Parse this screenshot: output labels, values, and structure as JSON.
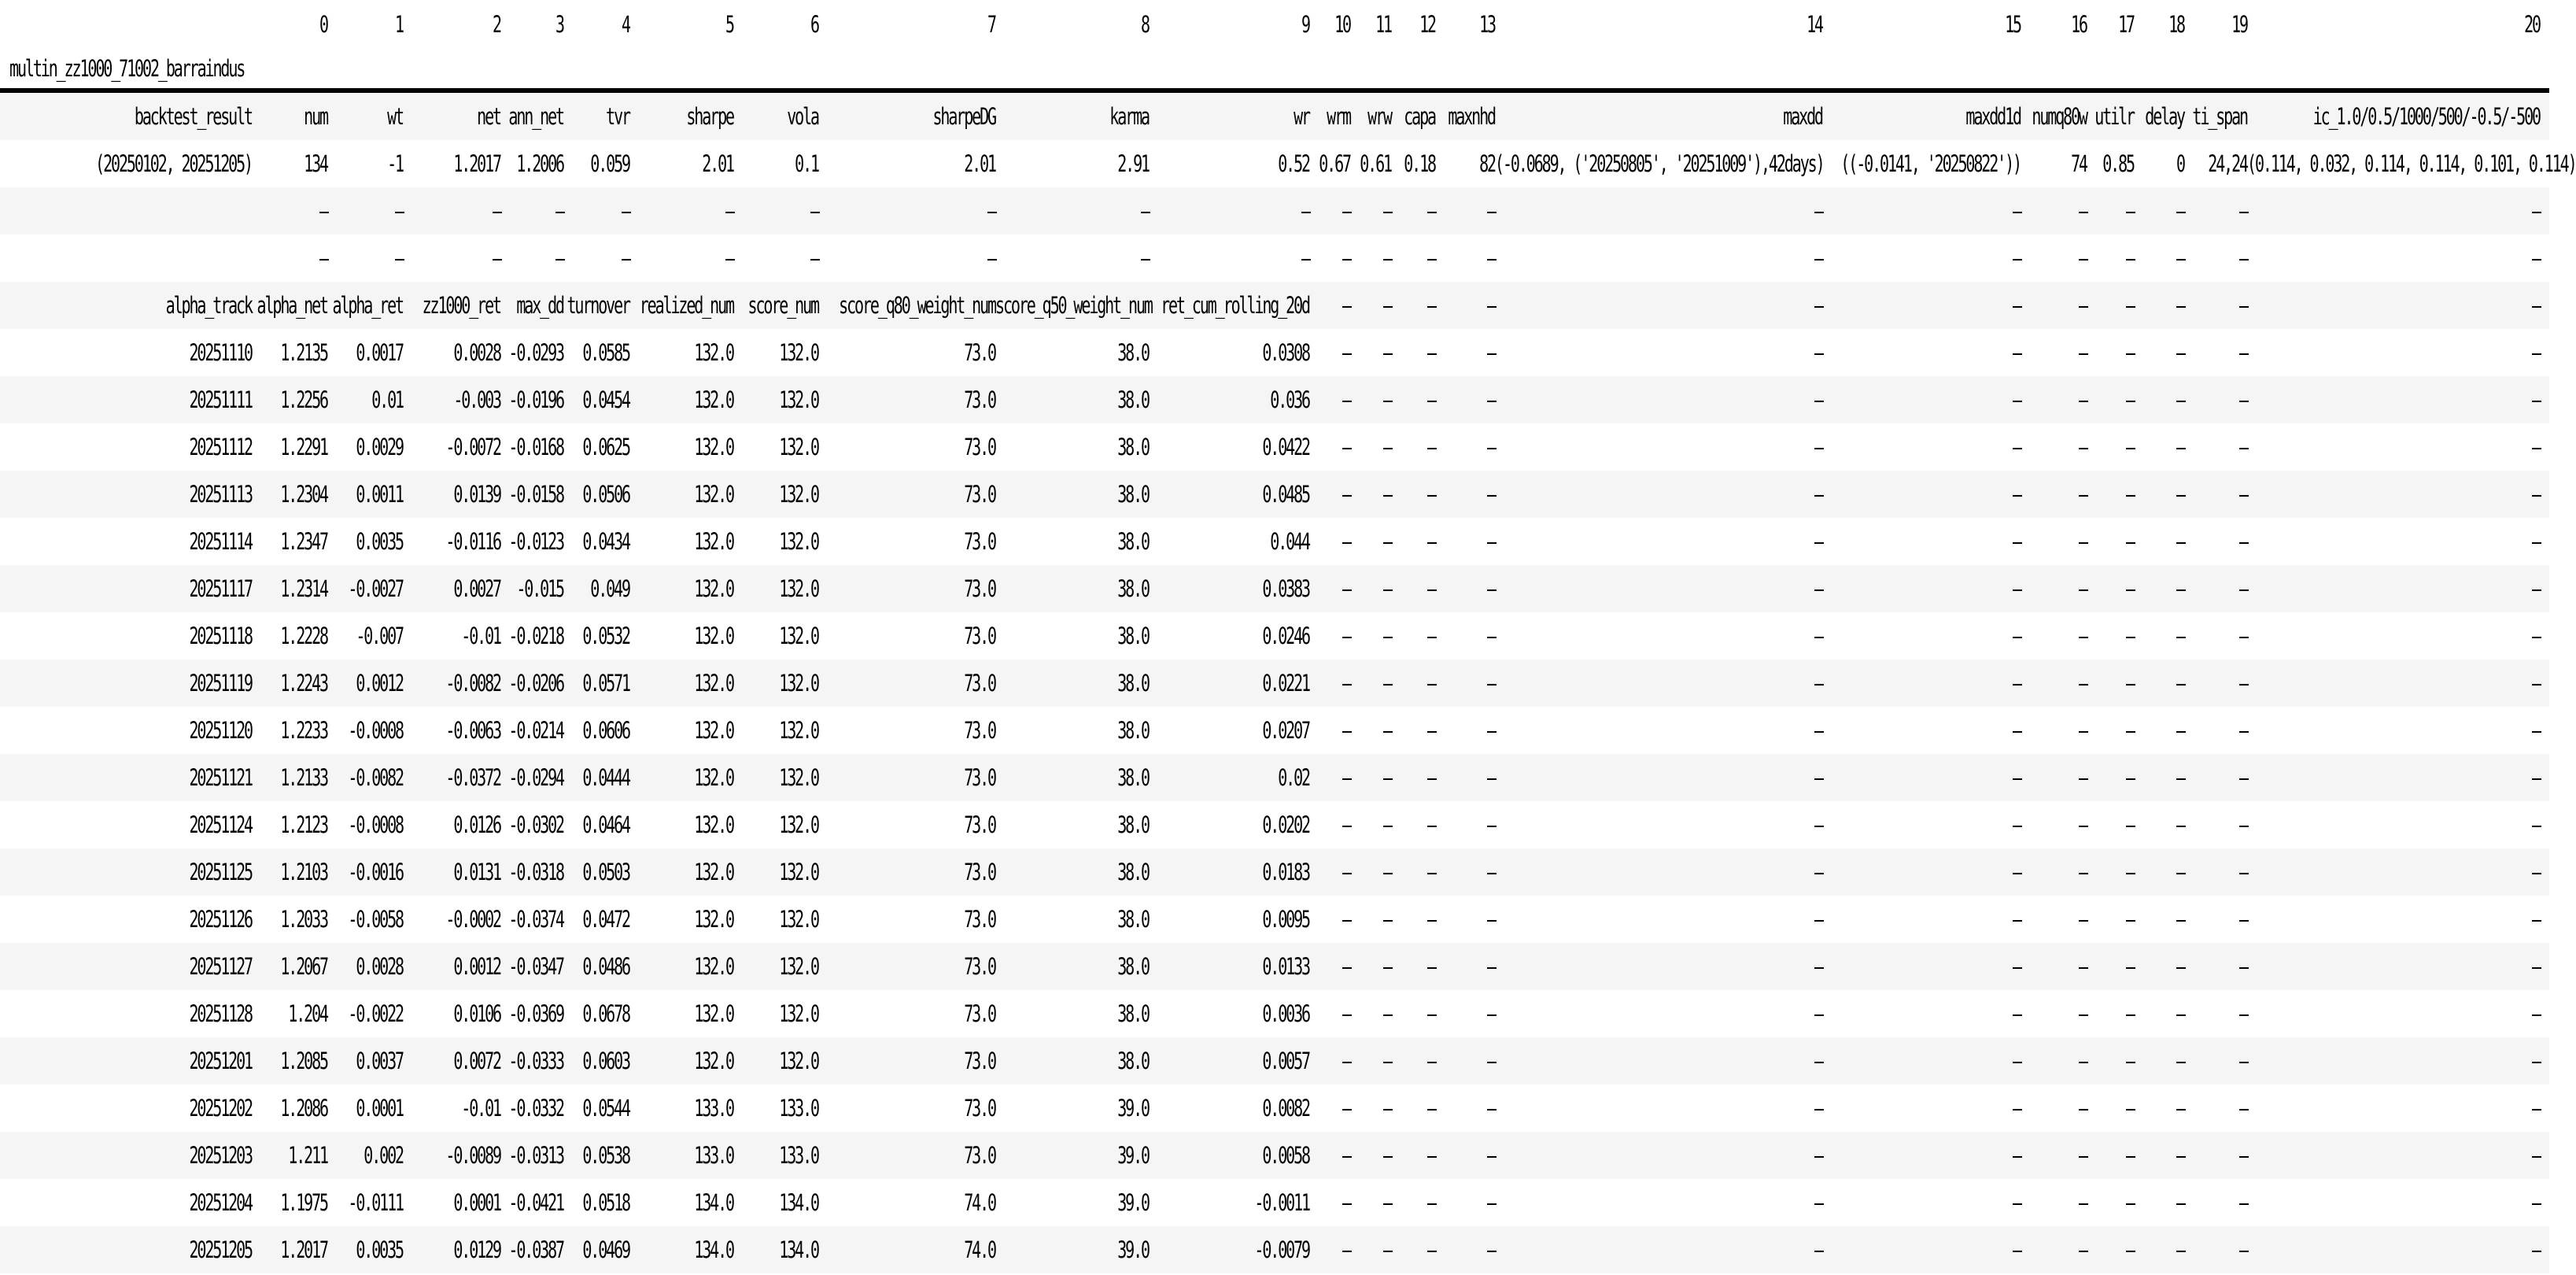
{
  "table": {
    "title": "multin_zz1000_71002_barraindus",
    "colors": {
      "background": "#ffffff",
      "stripe": "#f5f5f5",
      "rule": "#000000",
      "text": "#000000"
    },
    "column_indices": [
      "0",
      "1",
      "2",
      "3",
      "4",
      "5",
      "6",
      "7",
      "8",
      "9",
      "10",
      "11",
      "12",
      "13",
      "14",
      "15",
      "16",
      "17",
      "18",
      "19",
      "20"
    ],
    "columns": [
      "backtest_result",
      "num",
      "wt",
      "net",
      "ann_net",
      "tvr",
      "sharpe",
      "vola",
      "sharpeDG",
      "karma",
      "wr",
      "wrm",
      "wrw",
      "capa",
      "maxnhd",
      "maxdd",
      "maxdd1d",
      "numq80w",
      "utilr",
      "delay",
      "ti_span",
      "ic_1.0/0.5/1000/500/-0.5/-500"
    ],
    "rows": [
      {
        "index": "(20250102, 20251205)",
        "cells": [
          "134",
          "-1",
          "1.2017",
          "1.2006",
          "0.059",
          "2.01",
          "0.1",
          "2.01",
          "2.91",
          "0.52",
          "0.67",
          "0.61",
          "0.18",
          "82",
          "(-0.0689, ('20250805', '20251009'),42days)",
          "((-0.0141, '20250822'))",
          "74",
          "0.85",
          "0",
          "24,24",
          "(0.114, 0.032, 0.114, 0.114, 0.101, 0.114)"
        ]
      },
      {
        "index": "",
        "cells": [
          "—",
          "—",
          "—",
          "—",
          "—",
          "—",
          "—",
          "—",
          "—",
          "—",
          "—",
          "—",
          "—",
          "—",
          "—",
          "—",
          "—",
          "—",
          "—",
          "—",
          "—"
        ]
      },
      {
        "index": "",
        "cells": [
          "—",
          "—",
          "—",
          "—",
          "—",
          "—",
          "—",
          "—",
          "—",
          "—",
          "—",
          "—",
          "—",
          "—",
          "—",
          "—",
          "—",
          "—",
          "—",
          "—",
          "—"
        ]
      },
      {
        "index": "alpha_track",
        "cells": [
          "alpha_net",
          "alpha_ret",
          "zz1000_ret",
          "max_dd",
          "turnover",
          "realized_num",
          "score_num",
          "score_q80_weight_num",
          "score_q50_weight_num",
          "ret_cum_rolling_20d",
          "—",
          "—",
          "—",
          "—",
          "—",
          "—",
          "—",
          "—",
          "—",
          "—",
          "—"
        ]
      },
      {
        "index": "20251110",
        "cells": [
          "1.2135",
          "0.0017",
          "0.0028",
          "-0.0293",
          "0.0585",
          "132.0",
          "132.0",
          "73.0",
          "38.0",
          "0.0308",
          "—",
          "—",
          "—",
          "—",
          "—",
          "—",
          "—",
          "—",
          "—",
          "—",
          "—"
        ]
      },
      {
        "index": "20251111",
        "cells": [
          "1.2256",
          "0.01",
          "-0.003",
          "-0.0196",
          "0.0454",
          "132.0",
          "132.0",
          "73.0",
          "38.0",
          "0.036",
          "—",
          "—",
          "—",
          "—",
          "—",
          "—",
          "—",
          "—",
          "—",
          "—",
          "—"
        ]
      },
      {
        "index": "20251112",
        "cells": [
          "1.2291",
          "0.0029",
          "-0.0072",
          "-0.0168",
          "0.0625",
          "132.0",
          "132.0",
          "73.0",
          "38.0",
          "0.0422",
          "—",
          "—",
          "—",
          "—",
          "—",
          "—",
          "—",
          "—",
          "—",
          "—",
          "—"
        ]
      },
      {
        "index": "20251113",
        "cells": [
          "1.2304",
          "0.0011",
          "0.0139",
          "-0.0158",
          "0.0506",
          "132.0",
          "132.0",
          "73.0",
          "38.0",
          "0.0485",
          "—",
          "—",
          "—",
          "—",
          "—",
          "—",
          "—",
          "—",
          "—",
          "—",
          "—"
        ]
      },
      {
        "index": "20251114",
        "cells": [
          "1.2347",
          "0.0035",
          "-0.0116",
          "-0.0123",
          "0.0434",
          "132.0",
          "132.0",
          "73.0",
          "38.0",
          "0.044",
          "—",
          "—",
          "—",
          "—",
          "—",
          "—",
          "—",
          "—",
          "—",
          "—",
          "—"
        ]
      },
      {
        "index": "20251117",
        "cells": [
          "1.2314",
          "-0.0027",
          "0.0027",
          "-0.015",
          "0.049",
          "132.0",
          "132.0",
          "73.0",
          "38.0",
          "0.0383",
          "—",
          "—",
          "—",
          "—",
          "—",
          "—",
          "—",
          "—",
          "—",
          "—",
          "—"
        ]
      },
      {
        "index": "20251118",
        "cells": [
          "1.2228",
          "-0.007",
          "-0.01",
          "-0.0218",
          "0.0532",
          "132.0",
          "132.0",
          "73.0",
          "38.0",
          "0.0246",
          "—",
          "—",
          "—",
          "—",
          "—",
          "—",
          "—",
          "—",
          "—",
          "—",
          "—"
        ]
      },
      {
        "index": "20251119",
        "cells": [
          "1.2243",
          "0.0012",
          "-0.0082",
          "-0.0206",
          "0.0571",
          "132.0",
          "132.0",
          "73.0",
          "38.0",
          "0.0221",
          "—",
          "—",
          "—",
          "—",
          "—",
          "—",
          "—",
          "—",
          "—",
          "—",
          "—"
        ]
      },
      {
        "index": "20251120",
        "cells": [
          "1.2233",
          "-0.0008",
          "-0.0063",
          "-0.0214",
          "0.0606",
          "132.0",
          "132.0",
          "73.0",
          "38.0",
          "0.0207",
          "—",
          "—",
          "—",
          "—",
          "—",
          "—",
          "—",
          "—",
          "—",
          "—",
          "—"
        ]
      },
      {
        "index": "20251121",
        "cells": [
          "1.2133",
          "-0.0082",
          "-0.0372",
          "-0.0294",
          "0.0444",
          "132.0",
          "132.0",
          "73.0",
          "38.0",
          "0.02",
          "—",
          "—",
          "—",
          "—",
          "—",
          "—",
          "—",
          "—",
          "—",
          "—",
          "—"
        ]
      },
      {
        "index": "20251124",
        "cells": [
          "1.2123",
          "-0.0008",
          "0.0126",
          "-0.0302",
          "0.0464",
          "132.0",
          "132.0",
          "73.0",
          "38.0",
          "0.0202",
          "—",
          "—",
          "—",
          "—",
          "—",
          "—",
          "—",
          "—",
          "—",
          "—",
          "—"
        ]
      },
      {
        "index": "20251125",
        "cells": [
          "1.2103",
          "-0.0016",
          "0.0131",
          "-0.0318",
          "0.0503",
          "132.0",
          "132.0",
          "73.0",
          "38.0",
          "0.0183",
          "—",
          "—",
          "—",
          "—",
          "—",
          "—",
          "—",
          "—",
          "—",
          "—",
          "—"
        ]
      },
      {
        "index": "20251126",
        "cells": [
          "1.2033",
          "-0.0058",
          "-0.0002",
          "-0.0374",
          "0.0472",
          "132.0",
          "132.0",
          "73.0",
          "38.0",
          "0.0095",
          "—",
          "—",
          "—",
          "—",
          "—",
          "—",
          "—",
          "—",
          "—",
          "—",
          "—"
        ]
      },
      {
        "index": "20251127",
        "cells": [
          "1.2067",
          "0.0028",
          "0.0012",
          "-0.0347",
          "0.0486",
          "132.0",
          "132.0",
          "73.0",
          "38.0",
          "0.0133",
          "—",
          "—",
          "—",
          "—",
          "—",
          "—",
          "—",
          "—",
          "—",
          "—",
          "—"
        ]
      },
      {
        "index": "20251128",
        "cells": [
          "1.204",
          "-0.0022",
          "0.0106",
          "-0.0369",
          "0.0678",
          "132.0",
          "132.0",
          "73.0",
          "38.0",
          "0.0036",
          "—",
          "—",
          "—",
          "—",
          "—",
          "—",
          "—",
          "—",
          "—",
          "—",
          "—"
        ]
      },
      {
        "index": "20251201",
        "cells": [
          "1.2085",
          "0.0037",
          "0.0072",
          "-0.0333",
          "0.0603",
          "132.0",
          "132.0",
          "73.0",
          "38.0",
          "0.0057",
          "—",
          "—",
          "—",
          "—",
          "—",
          "—",
          "—",
          "—",
          "—",
          "—",
          "—"
        ]
      },
      {
        "index": "20251202",
        "cells": [
          "1.2086",
          "0.0001",
          "-0.01",
          "-0.0332",
          "0.0544",
          "133.0",
          "133.0",
          "73.0",
          "39.0",
          "0.0082",
          "—",
          "—",
          "—",
          "—",
          "—",
          "—",
          "—",
          "—",
          "—",
          "—",
          "—"
        ]
      },
      {
        "index": "20251203",
        "cells": [
          "1.211",
          "0.002",
          "-0.0089",
          "-0.0313",
          "0.0538",
          "133.0",
          "133.0",
          "73.0",
          "39.0",
          "0.0058",
          "—",
          "—",
          "—",
          "—",
          "—",
          "—",
          "—",
          "—",
          "—",
          "—",
          "—"
        ]
      },
      {
        "index": "20251204",
        "cells": [
          "1.1975",
          "-0.0111",
          "0.0001",
          "-0.0421",
          "0.0518",
          "134.0",
          "134.0",
          "74.0",
          "39.0",
          "-0.0011",
          "—",
          "—",
          "—",
          "—",
          "—",
          "—",
          "—",
          "—",
          "—",
          "—",
          "—"
        ]
      },
      {
        "index": "20251205",
        "cells": [
          "1.2017",
          "0.0035",
          "0.0129",
          "-0.0387",
          "0.0469",
          "134.0",
          "134.0",
          "74.0",
          "39.0",
          "-0.0079",
          "—",
          "—",
          "—",
          "—",
          "—",
          "—",
          "—",
          "—",
          "—",
          "—",
          "—"
        ]
      }
    ]
  }
}
